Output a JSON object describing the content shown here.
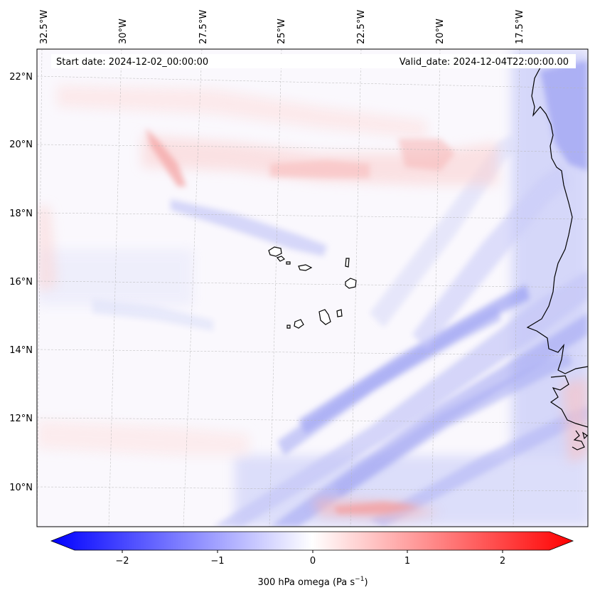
{
  "map": {
    "start_label": "Start date: 2024-12-02_00:00:00",
    "valid_label": "Valid_date: 2024-12-04T22:00:00.00",
    "lon_ticks": [
      "32.5°W",
      "30°W",
      "27.5°W",
      "25°W",
      "22.5°W",
      "20°W",
      "17.5°W"
    ],
    "lat_ticks": [
      "22°N",
      "20°N",
      "18°N",
      "16°N",
      "14°N",
      "12°N",
      "10°N"
    ]
  },
  "colorbar": {
    "ticks": [
      "−2",
      "−1",
      "0",
      "1",
      "2"
    ],
    "tick_values": [
      -2,
      -1,
      0,
      1,
      2
    ],
    "range": [
      -2.5,
      2.5
    ],
    "label_main": "300 hPa omega (Pa s",
    "label_sup": "−1",
    "label_end": ")"
  },
  "colors": {
    "negative": "#0000ff",
    "zero": "#ffffff",
    "positive": "#ff0000",
    "coast": "#000000",
    "grid": "#b0b0b0"
  }
}
